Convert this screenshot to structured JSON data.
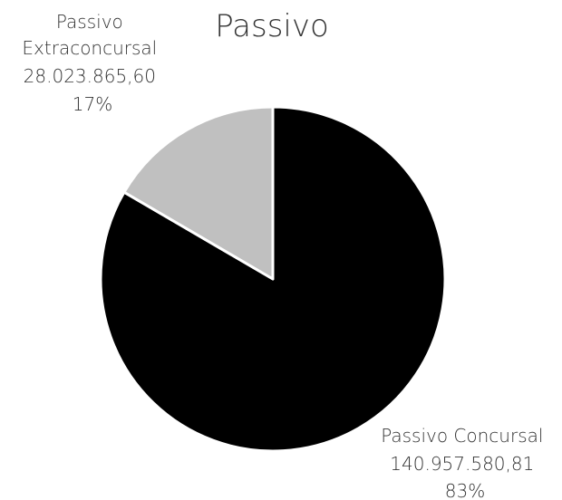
{
  "chart_data": {
    "type": "pie",
    "title": "Passivo",
    "slices": [
      {
        "name": "Passivo Concursal",
        "value": 140957580.81,
        "value_label": "140.957.580,81",
        "percent_label": "83%",
        "color": "#000000"
      },
      {
        "name": "Passivo Extraconcursal",
        "value": 28023865.6,
        "value_label": "28.023.865,60",
        "percent_label": "17%",
        "color": "#c0c0c0"
      }
    ],
    "start_angle": "12 o'clock",
    "direction": "clockwise",
    "slice_border_color": "#ffffff",
    "legend": "none"
  }
}
